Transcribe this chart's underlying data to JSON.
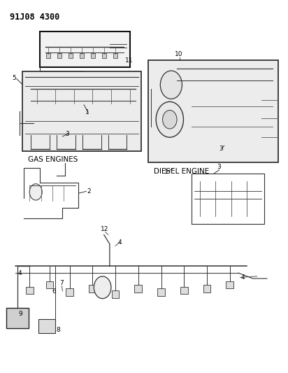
{
  "title_code": "91J08 4300",
  "background_color": "#ffffff",
  "text_color": "#000000",
  "label_gas": "GAS ENGINES",
  "label_diesel": "DIESEL ENGINE",
  "figsize": [
    4.12,
    5.33
  ],
  "dpi": 100
}
